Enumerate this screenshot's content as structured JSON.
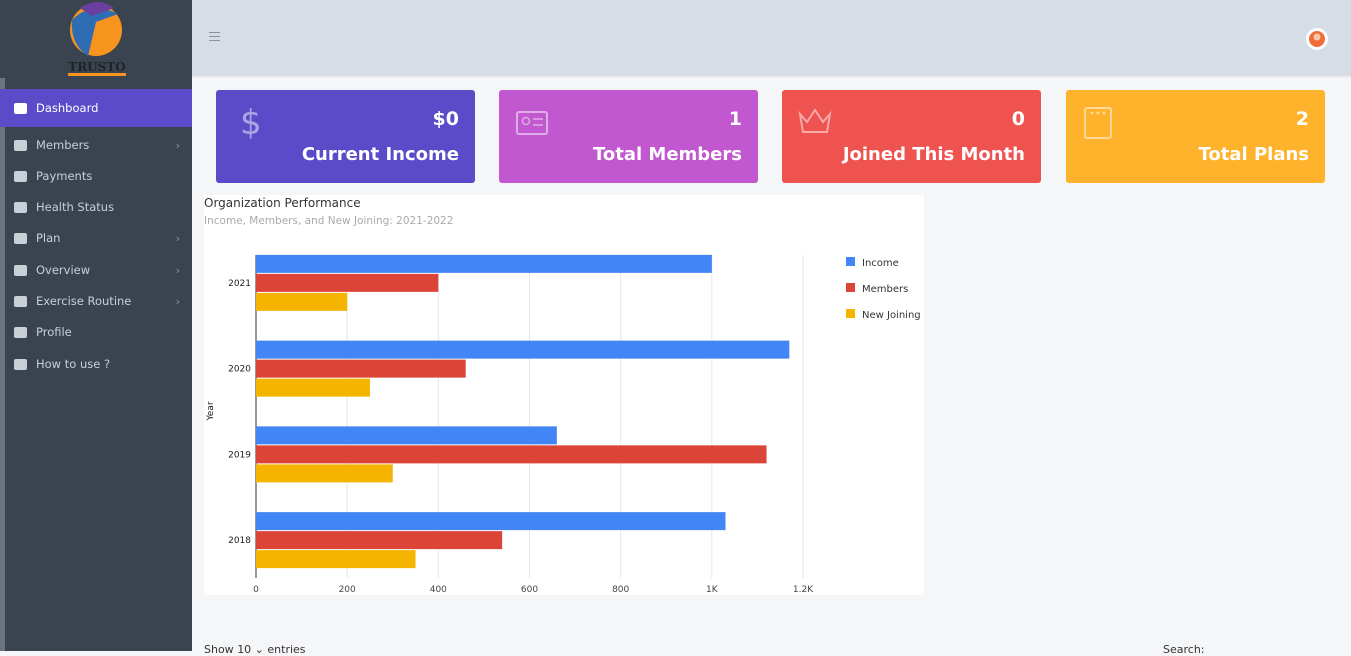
{
  "sidebar": {
    "logo": "TRUSTO",
    "menu": [
      "Dashboard",
      "Members",
      "Payments",
      "Health Status",
      "Plan",
      "Overview",
      "Exercise Routine",
      "Profile",
      "How to use ?"
    ]
  },
  "cards": [
    {
      "value": "$0",
      "label": "Current Income"
    },
    {
      "value": "1",
      "label": "Total Members"
    },
    {
      "value": "0",
      "label": "Joined This Month"
    },
    {
      "value": "2",
      "label": "Total Plans"
    }
  ],
  "chart_data": {
    "type": "hbar",
    "title": "Organization Performance",
    "subtitle": "Income, Members, and New Joining: 2021-2022",
    "y_label": "Year",
    "categories": [
      "2021",
      "2020",
      "2019",
      "2018"
    ],
    "series": [
      {
        "name": "Income",
        "color": "#4285f4",
        "values": [
          1000,
          1170,
          660,
          1030
        ]
      },
      {
        "name": "Members",
        "color": "#db4437",
        "values": [
          400,
          460,
          1120,
          540
        ]
      },
      {
        "name": "New Joining",
        "color": "#f4b400",
        "values": [
          200,
          250,
          300,
          350
        ]
      }
    ],
    "xlim": [
      0,
      1200
    ],
    "xticks": [
      0,
      200,
      400,
      600,
      800,
      {
        "value": 1000,
        "label": "1K"
      },
      {
        "value": 1200,
        "label": "1.2K"
      }
    ],
    "grid": true,
    "legend": "right"
  },
  "table_controls": {
    "show": "Show",
    "length": "10",
    "entries": "entries",
    "search": "Search:"
  }
}
